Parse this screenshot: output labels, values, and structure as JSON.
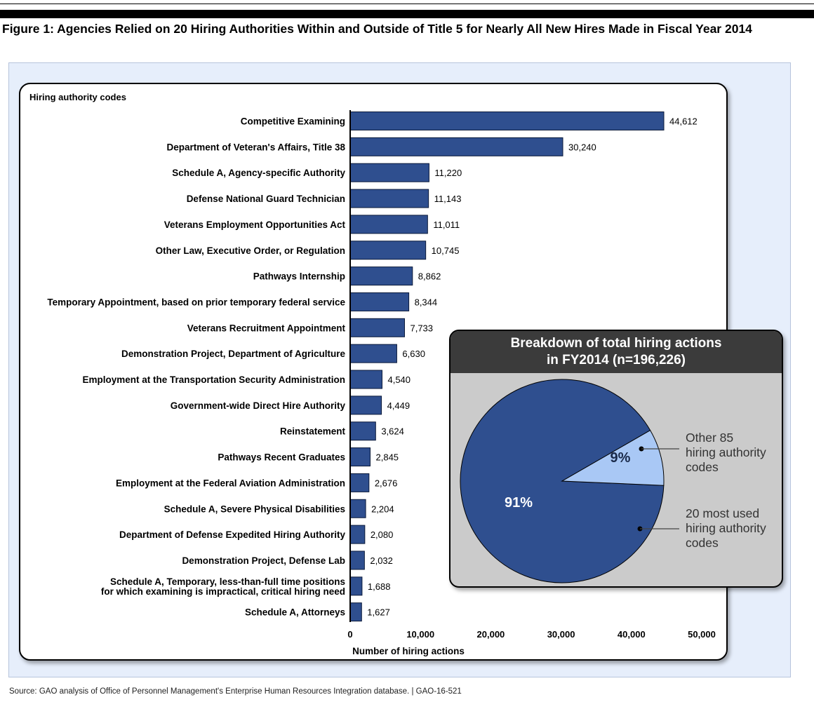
{
  "figure": {
    "title": "Figure 1: Agencies Relied on 20 Hiring Authorities Within and Outside of Title 5 for Nearly All New Hires Made in Fiscal Year 2014",
    "source": "Source: GAO analysis of Office of Personnel Management's Enterprise Human Resources Integration database.  |  GAO-16-521"
  },
  "chart_data": [
    {
      "type": "bar",
      "orientation": "horizontal",
      "legend_label": "Hiring authority codes",
      "xlabel": "Number of hiring actions",
      "ylabel": "",
      "xlim": [
        0,
        50000
      ],
      "x_ticks": [
        0,
        10000,
        20000,
        30000,
        40000,
        50000
      ],
      "x_tick_labels": [
        "0",
        "10,000",
        "20,000",
        "30,000",
        "40,000",
        "50,000"
      ],
      "bar_color": "#2f4f8f",
      "grid": false,
      "categories": [
        [
          "Competitive Examining"
        ],
        [
          "Department of Veteran's Affairs, Title 38"
        ],
        [
          "Schedule A, Agency-specific Authority"
        ],
        [
          "Defense National Guard Technician"
        ],
        [
          "Veterans Employment Opportunities Act"
        ],
        [
          "Other Law, Executive Order, or Regulation"
        ],
        [
          "Pathways Internship"
        ],
        [
          "Temporary Appointment, based on prior temporary federal service"
        ],
        [
          "Veterans Recruitment Appointment"
        ],
        [
          "Demonstration Project, Department of Agriculture"
        ],
        [
          "Employment at the Transportation Security Administration"
        ],
        [
          "Government-wide Direct Hire Authority"
        ],
        [
          "Reinstatement"
        ],
        [
          "Pathways Recent Graduates"
        ],
        [
          "Employment at the Federal Aviation Administration"
        ],
        [
          "Schedule A, Severe Physical Disabilities"
        ],
        [
          "Department of Defense Expedited Hiring Authority"
        ],
        [
          "Demonstration Project, Defense Lab"
        ],
        [
          "Schedule A, Temporary, less-than-full time positions",
          "for which examining is impractical, critical hiring need"
        ],
        [
          "Schedule A, Attorneys"
        ]
      ],
      "values": [
        44612,
        30240,
        11220,
        11143,
        11011,
        10745,
        8862,
        8344,
        7733,
        6630,
        4540,
        4449,
        3624,
        2845,
        2676,
        2204,
        2080,
        2032,
        1688,
        1627
      ],
      "value_labels": [
        "44,612",
        "30,240",
        "11,220",
        "11,143",
        "11,011",
        "10,745",
        "8,862",
        "8,344",
        "7,733",
        "6,630",
        "4,540",
        "4,449",
        "3,624",
        "2,845",
        "2,676",
        "2,204",
        "2,080",
        "2,032",
        "1,688",
        "1,627"
      ]
    },
    {
      "type": "pie",
      "title": [
        "Breakdown of total hiring actions",
        "in FY2014 (n=196,226)"
      ],
      "slices": [
        {
          "name": [
            "20 most used",
            "hiring authority",
            "codes"
          ],
          "value": 91,
          "label": "91%",
          "color": "#2f4f8f"
        },
        {
          "name": [
            "Other 85",
            "hiring authority",
            "codes"
          ],
          "value": 9,
          "label": "9%",
          "color": "#a9c8f5"
        }
      ]
    }
  ]
}
